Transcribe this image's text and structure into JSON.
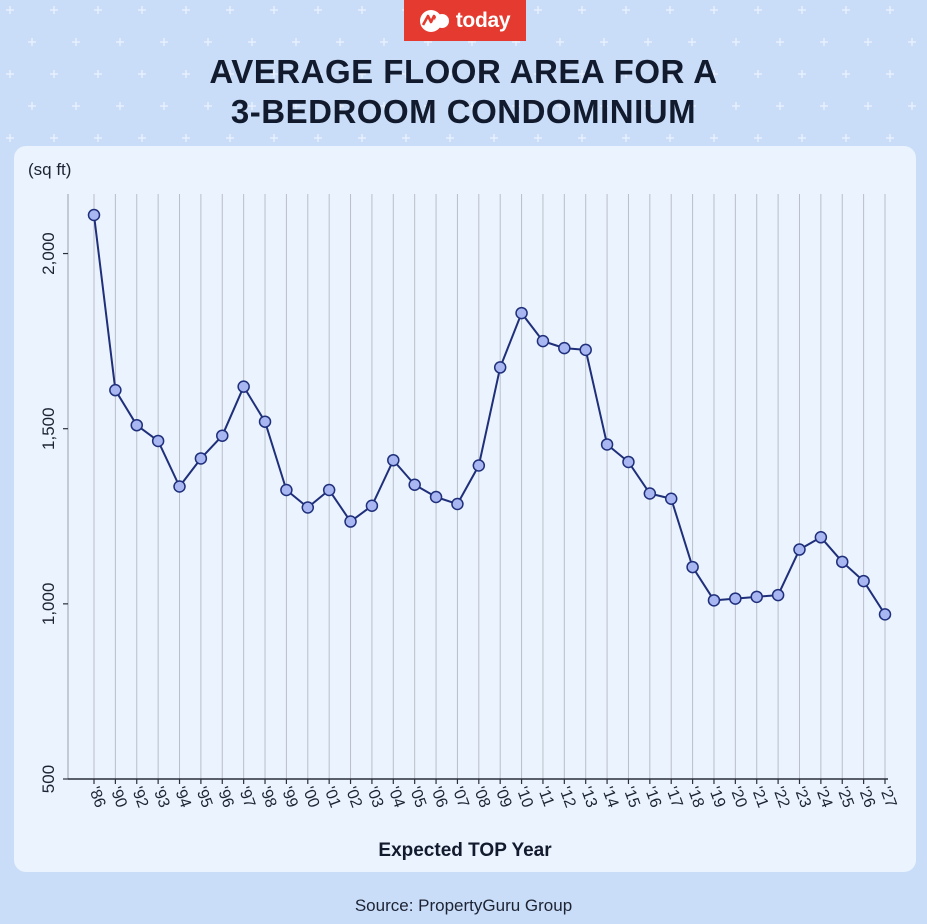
{
  "brand": {
    "logo_text": "today",
    "color": "#e43a2f"
  },
  "header": {
    "title_line1": "AVERAGE FLOOR AREA FOR A",
    "title_line2": "3-BEDROOM CONDOMINIUM"
  },
  "footer": {
    "source": "Source: PropertyGuru Group"
  },
  "chart_data": {
    "type": "line",
    "ylabel": "(sq ft)",
    "xlabel": "Expected TOP Year",
    "ylim": [
      500,
      2170
    ],
    "yticks": [
      500,
      1000,
      1500,
      2000
    ],
    "ytick_labels": [
      "500",
      "1,000",
      "1,500",
      "2,000"
    ],
    "grid": "vertical",
    "colors": {
      "line": "#1f2f7a",
      "marker_fill": "#a8b6f2",
      "grid": "#b9bfc9"
    },
    "x": [
      "'86",
      "'90",
      "'92",
      "'93",
      "'94",
      "'95",
      "'96",
      "'97",
      "'98",
      "'99",
      "'00",
      "'01",
      "'02",
      "'03",
      "'04",
      "'05",
      "'06",
      "'07",
      "'08",
      "'09",
      "'10",
      "'11",
      "'12",
      "'13",
      "'14",
      "'15",
      "'16",
      "'17",
      "'18",
      "'19",
      "'20",
      "'21",
      "'22",
      "'23",
      "'24",
      "'25",
      "'26",
      "'27"
    ],
    "series": [
      {
        "values": [
          2110,
          1610,
          1510,
          1465,
          1335,
          1415,
          1480,
          1620,
          1520,
          1325,
          1275,
          1325,
          1235,
          1280,
          1410,
          1340,
          1305,
          1285,
          1395,
          1675,
          1830,
          1750,
          1730,
          1725,
          1455,
          1405,
          1315,
          1300,
          1105,
          1010,
          1015,
          1020,
          1025,
          1155,
          1190,
          1120,
          1065,
          970
        ]
      }
    ]
  }
}
